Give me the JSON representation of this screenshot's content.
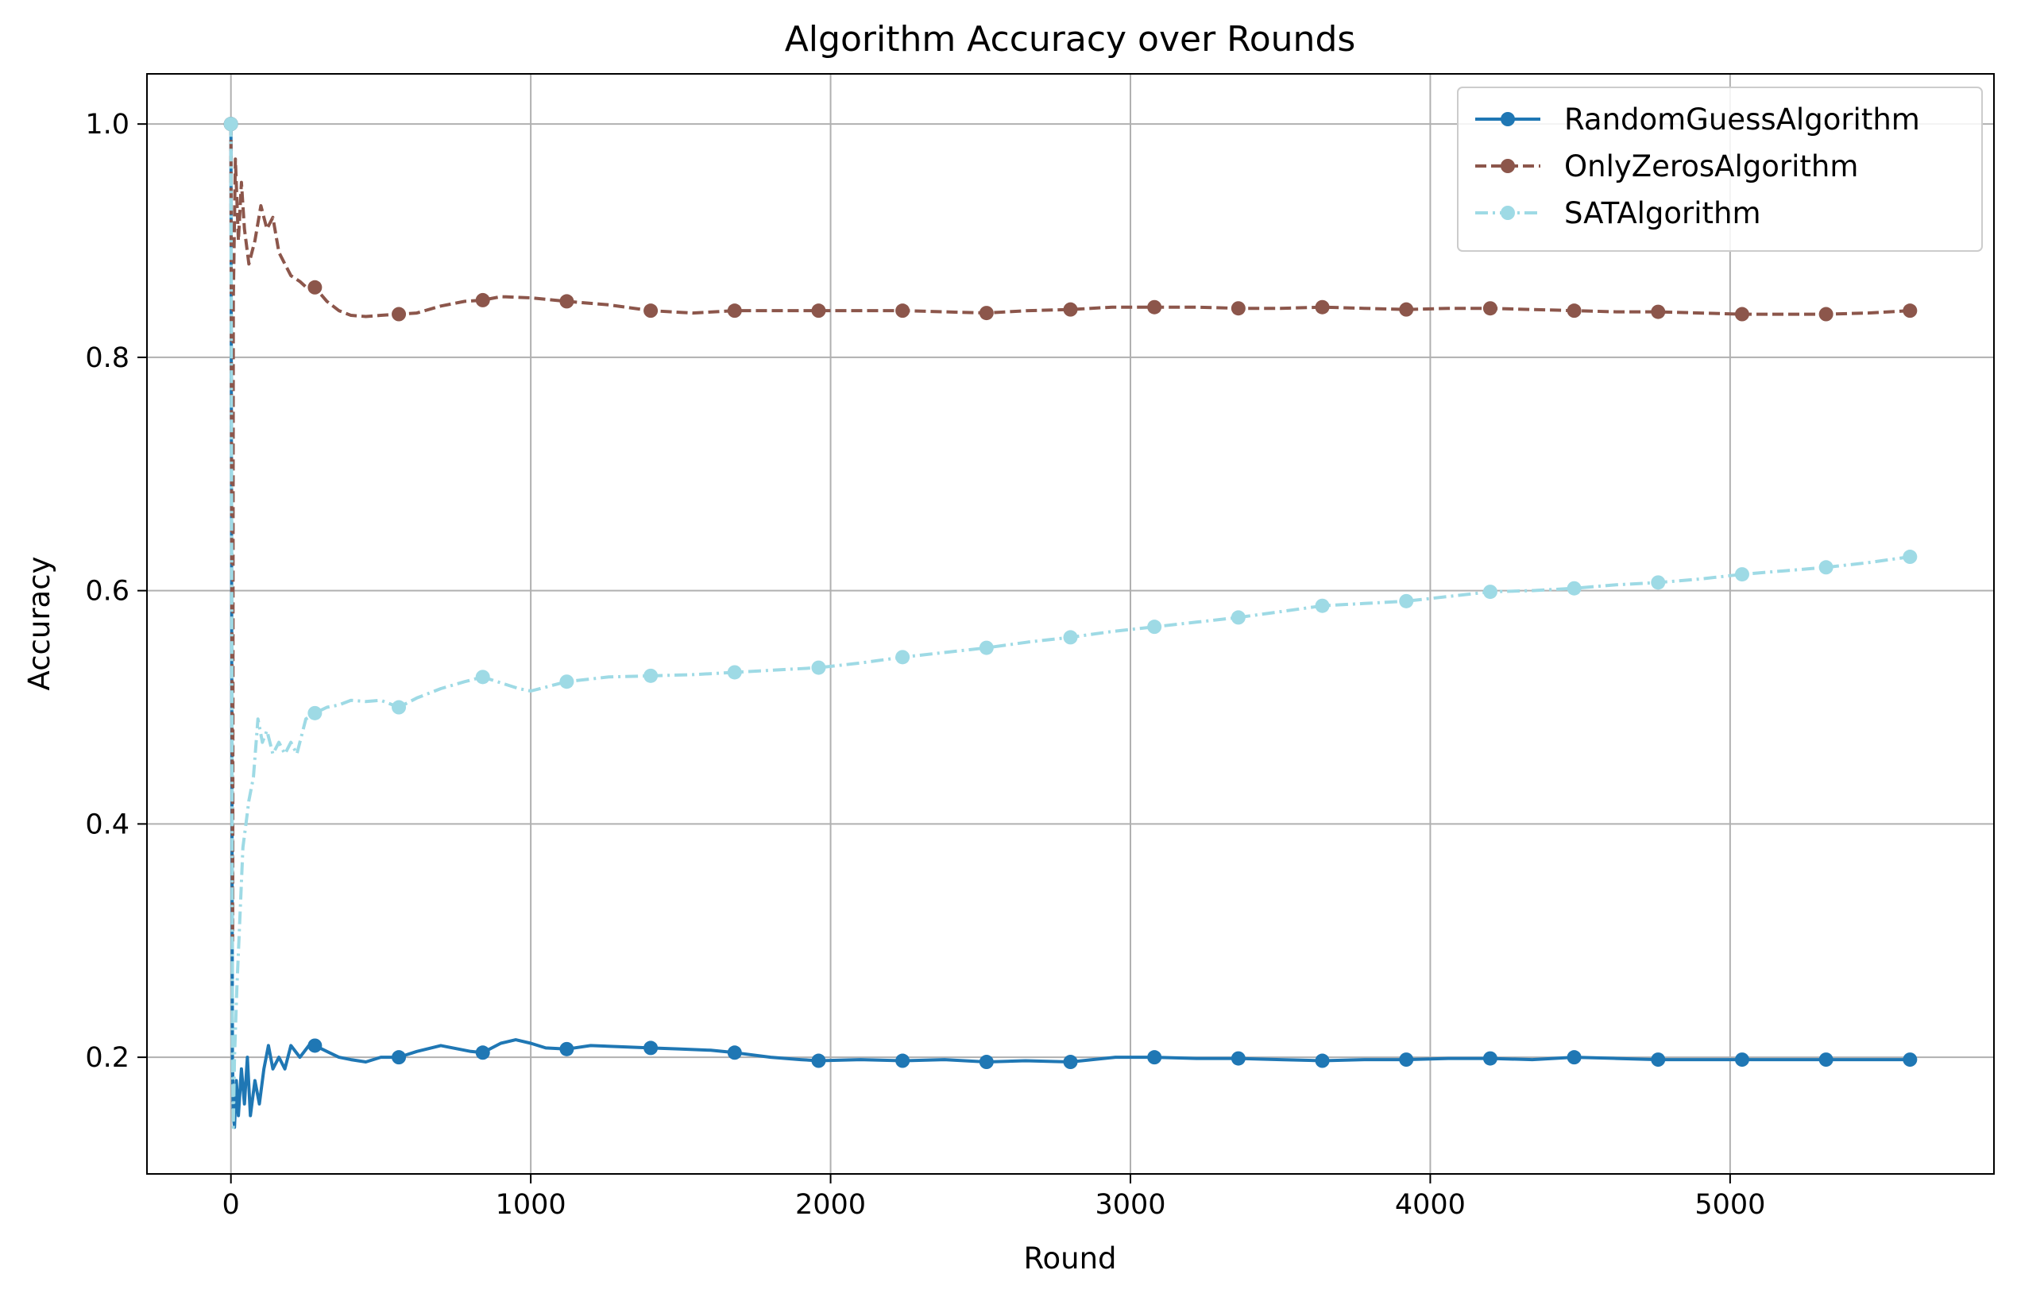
{
  "chart_data": {
    "type": "line",
    "title": "Algorithm Accuracy over Rounds",
    "xlabel": "Round",
    "ylabel": "Accuracy",
    "xlim": [
      -280,
      5880
    ],
    "ylim": [
      0.1,
      1.043
    ],
    "xticks": [
      0,
      1000,
      2000,
      3000,
      4000,
      5000
    ],
    "yticks": [
      0.2,
      0.4,
      0.6,
      0.8,
      1.0
    ],
    "grid": true,
    "legend_position": "upper-right",
    "series": [
      {
        "name": "RandomGuessAlgorithm",
        "color": "#1f77b4",
        "line_style": "solid",
        "marker": "circle",
        "points": [
          [
            0,
            1.0
          ],
          [
            3,
            0.5
          ],
          [
            5,
            0.2
          ],
          [
            8,
            0.15
          ],
          [
            12,
            0.14
          ],
          [
            18,
            0.18
          ],
          [
            25,
            0.15
          ],
          [
            35,
            0.19
          ],
          [
            45,
            0.16
          ],
          [
            55,
            0.2
          ],
          [
            65,
            0.15
          ],
          [
            80,
            0.18
          ],
          [
            95,
            0.16
          ],
          [
            110,
            0.19
          ],
          [
            125,
            0.21
          ],
          [
            140,
            0.19
          ],
          [
            160,
            0.2
          ],
          [
            180,
            0.19
          ],
          [
            200,
            0.21
          ],
          [
            230,
            0.2
          ],
          [
            260,
            0.21
          ],
          [
            280,
            0.21
          ],
          [
            320,
            0.205
          ],
          [
            360,
            0.2
          ],
          [
            400,
            0.198
          ],
          [
            450,
            0.196
          ],
          [
            500,
            0.2
          ],
          [
            560,
            0.2
          ],
          [
            620,
            0.205
          ],
          [
            700,
            0.21
          ],
          [
            800,
            0.205
          ],
          [
            840,
            0.204
          ],
          [
            900,
            0.212
          ],
          [
            950,
            0.215
          ],
          [
            1000,
            0.212
          ],
          [
            1050,
            0.208
          ],
          [
            1120,
            0.207
          ],
          [
            1200,
            0.21
          ],
          [
            1300,
            0.209
          ],
          [
            1400,
            0.208
          ],
          [
            1500,
            0.207
          ],
          [
            1600,
            0.206
          ],
          [
            1680,
            0.204
          ],
          [
            1800,
            0.2
          ],
          [
            1900,
            0.198
          ],
          [
            1960,
            0.197
          ],
          [
            2100,
            0.198
          ],
          [
            2240,
            0.197
          ],
          [
            2380,
            0.198
          ],
          [
            2520,
            0.196
          ],
          [
            2650,
            0.197
          ],
          [
            2800,
            0.196
          ],
          [
            2950,
            0.2
          ],
          [
            3080,
            0.2
          ],
          [
            3220,
            0.199
          ],
          [
            3360,
            0.199
          ],
          [
            3500,
            0.198
          ],
          [
            3640,
            0.197
          ],
          [
            3780,
            0.198
          ],
          [
            3920,
            0.198
          ],
          [
            4060,
            0.199
          ],
          [
            4200,
            0.199
          ],
          [
            4340,
            0.198
          ],
          [
            4480,
            0.2
          ],
          [
            4620,
            0.199
          ],
          [
            4760,
            0.198
          ],
          [
            4900,
            0.198
          ],
          [
            5040,
            0.198
          ],
          [
            5180,
            0.198
          ],
          [
            5320,
            0.198
          ],
          [
            5460,
            0.198
          ],
          [
            5600,
            0.198
          ]
        ]
      },
      {
        "name": "OnlyZerosAlgorithm",
        "color": "#8c564b",
        "line_style": "dashed",
        "marker": "circle",
        "points": [
          [
            0,
            1.0
          ],
          [
            3,
            0.6
          ],
          [
            6,
            0.3
          ],
          [
            8,
            0.85
          ],
          [
            15,
            0.97
          ],
          [
            25,
            0.9
          ],
          [
            35,
            0.95
          ],
          [
            45,
            0.91
          ],
          [
            60,
            0.88
          ],
          [
            80,
            0.9
          ],
          [
            100,
            0.93
          ],
          [
            120,
            0.91
          ],
          [
            140,
            0.92
          ],
          [
            160,
            0.89
          ],
          [
            180,
            0.88
          ],
          [
            200,
            0.87
          ],
          [
            230,
            0.865
          ],
          [
            260,
            0.858
          ],
          [
            280,
            0.86
          ],
          [
            320,
            0.848
          ],
          [
            360,
            0.84
          ],
          [
            400,
            0.836
          ],
          [
            450,
            0.835
          ],
          [
            500,
            0.836
          ],
          [
            560,
            0.837
          ],
          [
            620,
            0.838
          ],
          [
            700,
            0.844
          ],
          [
            780,
            0.848
          ],
          [
            840,
            0.849
          ],
          [
            900,
            0.852
          ],
          [
            1000,
            0.851
          ],
          [
            1120,
            0.848
          ],
          [
            1260,
            0.845
          ],
          [
            1400,
            0.84
          ],
          [
            1540,
            0.838
          ],
          [
            1680,
            0.84
          ],
          [
            1820,
            0.84
          ],
          [
            1960,
            0.84
          ],
          [
            2100,
            0.84
          ],
          [
            2240,
            0.84
          ],
          [
            2380,
            0.839
          ],
          [
            2520,
            0.838
          ],
          [
            2660,
            0.84
          ],
          [
            2800,
            0.841
          ],
          [
            2940,
            0.843
          ],
          [
            3080,
            0.843
          ],
          [
            3220,
            0.843
          ],
          [
            3360,
            0.842
          ],
          [
            3500,
            0.842
          ],
          [
            3640,
            0.843
          ],
          [
            3780,
            0.842
          ],
          [
            3920,
            0.841
          ],
          [
            4060,
            0.842
          ],
          [
            4200,
            0.842
          ],
          [
            4340,
            0.841
          ],
          [
            4480,
            0.84
          ],
          [
            4620,
            0.839
          ],
          [
            4760,
            0.839
          ],
          [
            4900,
            0.838
          ],
          [
            5040,
            0.837
          ],
          [
            5180,
            0.837
          ],
          [
            5320,
            0.837
          ],
          [
            5460,
            0.838
          ],
          [
            5600,
            0.84
          ]
        ]
      },
      {
        "name": "SATAlgorithm",
        "color": "#9edae5",
        "line_style": "dashdot",
        "marker": "circle",
        "points": [
          [
            0,
            1.0
          ],
          [
            3,
            0.6
          ],
          [
            5,
            0.2
          ],
          [
            8,
            0.14
          ],
          [
            12,
            0.2
          ],
          [
            20,
            0.26
          ],
          [
            30,
            0.32
          ],
          [
            40,
            0.38
          ],
          [
            50,
            0.4
          ],
          [
            60,
            0.42
          ],
          [
            75,
            0.44
          ],
          [
            90,
            0.49
          ],
          [
            105,
            0.47
          ],
          [
            120,
            0.48
          ],
          [
            140,
            0.46
          ],
          [
            160,
            0.47
          ],
          [
            180,
            0.46
          ],
          [
            200,
            0.47
          ],
          [
            220,
            0.46
          ],
          [
            250,
            0.49
          ],
          [
            280,
            0.495
          ],
          [
            320,
            0.5
          ],
          [
            360,
            0.502
          ],
          [
            400,
            0.506
          ],
          [
            450,
            0.505
          ],
          [
            500,
            0.506
          ],
          [
            560,
            0.5
          ],
          [
            620,
            0.508
          ],
          [
            700,
            0.516
          ],
          [
            780,
            0.522
          ],
          [
            840,
            0.526
          ],
          [
            900,
            0.521
          ],
          [
            960,
            0.516
          ],
          [
            1000,
            0.514
          ],
          [
            1060,
            0.518
          ],
          [
            1120,
            0.522
          ],
          [
            1260,
            0.526
          ],
          [
            1400,
            0.527
          ],
          [
            1540,
            0.528
          ],
          [
            1680,
            0.53
          ],
          [
            1820,
            0.532
          ],
          [
            1960,
            0.534
          ],
          [
            2100,
            0.538
          ],
          [
            2240,
            0.543
          ],
          [
            2380,
            0.547
          ],
          [
            2520,
            0.551
          ],
          [
            2660,
            0.556
          ],
          [
            2800,
            0.56
          ],
          [
            2940,
            0.565
          ],
          [
            3080,
            0.569
          ],
          [
            3220,
            0.573
          ],
          [
            3360,
            0.577
          ],
          [
            3500,
            0.582
          ],
          [
            3640,
            0.587
          ],
          [
            3780,
            0.589
          ],
          [
            3920,
            0.591
          ],
          [
            4060,
            0.595
          ],
          [
            4200,
            0.599
          ],
          [
            4340,
            0.6
          ],
          [
            4480,
            0.602
          ],
          [
            4620,
            0.605
          ],
          [
            4760,
            0.607
          ],
          [
            4900,
            0.61
          ],
          [
            5040,
            0.614
          ],
          [
            5180,
            0.617
          ],
          [
            5320,
            0.62
          ],
          [
            5460,
            0.624
          ],
          [
            5600,
            0.629
          ]
        ]
      }
    ]
  }
}
